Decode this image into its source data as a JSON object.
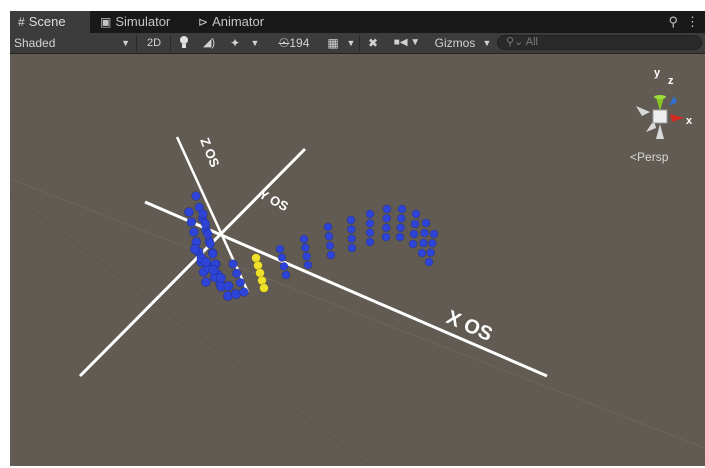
{
  "tabs": [
    {
      "label": "Scene",
      "icon": "hash-grid-icon",
      "active": true
    },
    {
      "label": "Simulator",
      "icon": "device-icon",
      "active": false
    },
    {
      "label": "Animator",
      "icon": "animator-icon",
      "active": false
    }
  ],
  "tab_actions": {
    "lock": "ɐ",
    "menu": "⋮"
  },
  "toolbar": {
    "shading_mode": "Shaded",
    "mode_2d": "2D",
    "hidden_count": "194",
    "gizmos_label": "Gizmos",
    "search_placeholder": "All"
  },
  "scene": {
    "axis_labels": {
      "x": "X OS",
      "y": "Y OS",
      "z": "Z OS"
    },
    "projection_label": "Persp",
    "gizmo_axes": {
      "x": "x",
      "y": "y",
      "z": "z"
    },
    "colors": {
      "background": "#615b53",
      "axis_line": "#ffffff",
      "sphere_blue": "#2d44d6",
      "sphere_yellow": "#efe02a",
      "gizmo_x": "#d32a1e",
      "gizmo_y": "#85c524",
      "gizmo_z": "#2e6fd6"
    }
  }
}
